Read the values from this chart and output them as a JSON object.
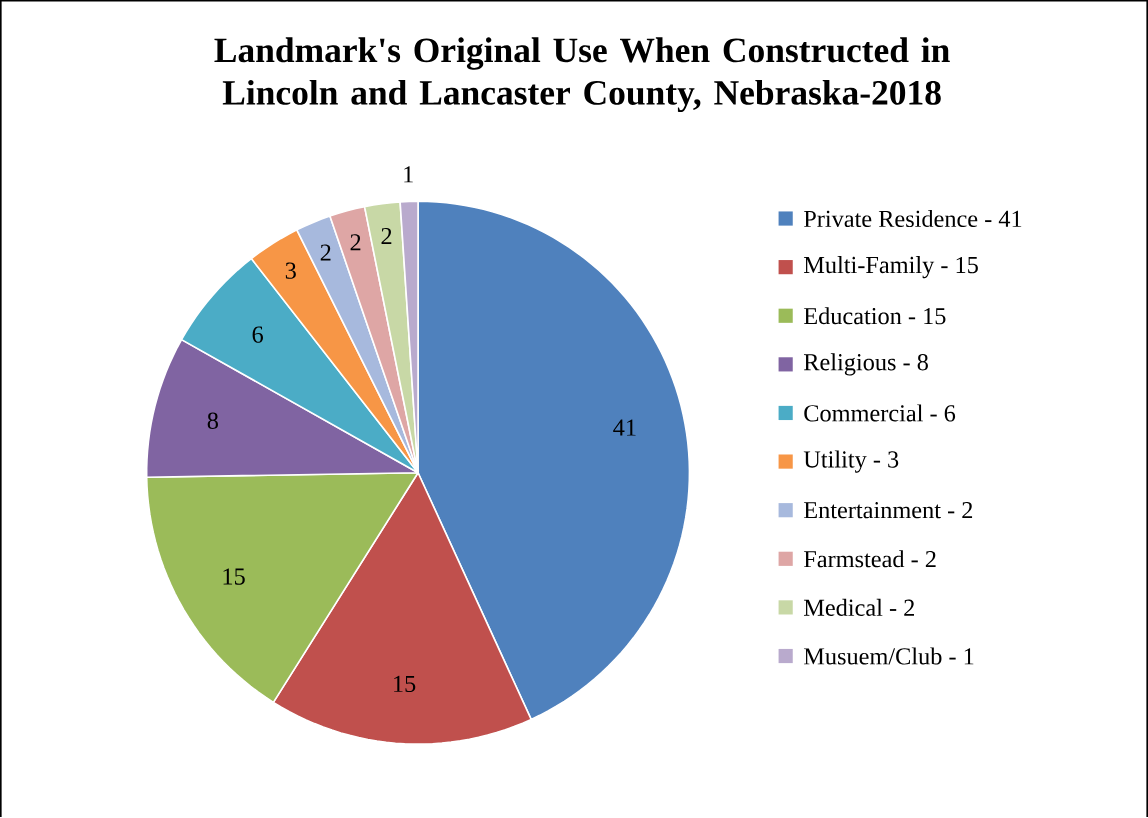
{
  "chart_data": {
    "type": "pie",
    "title": "Landmark's Original Use When Constructed in Lincoln and Lancaster County, Nebraska-2018",
    "categories": [
      "Private Residence - 41",
      "Multi-Family - 15",
      "Education - 15",
      "Religious - 8",
      "Commercial - 6",
      "Utility - 3",
      "Entertainment - 2",
      "Farmstead - 2",
      "Medical - 2",
      "Musuem/Club - 1"
    ],
    "values": [
      41,
      15,
      15,
      8,
      6,
      3,
      2,
      2,
      2,
      1
    ],
    "colors": [
      "#4f81bd",
      "#c0504d",
      "#9bbb59",
      "#8064a2",
      "#4bacc6",
      "#f79646",
      "#a7b9dd",
      "#dea6a5",
      "#c8d8a6",
      "#b9aacd"
    ],
    "data_labels": true,
    "legend": "right"
  }
}
